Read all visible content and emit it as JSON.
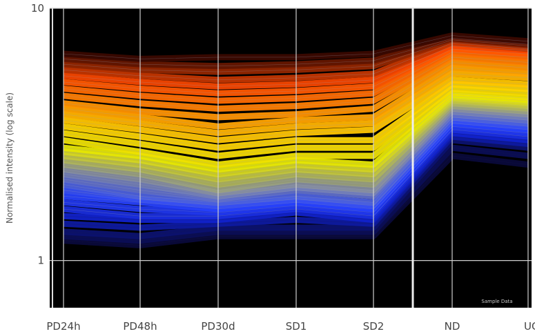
{
  "chart_data": {
    "type": "line",
    "title": "",
    "xlabel": "",
    "ylabel": "Normalised intensity (log scale)",
    "y_scale": "log",
    "ylim": [
      0.65,
      10
    ],
    "y_ticks": [
      {
        "value": 10,
        "label": "10"
      },
      {
        "value": 1,
        "label": "1"
      }
    ],
    "categories": [
      "PD24h",
      "PD48h",
      "PD30d",
      "SD1",
      "SD2",
      "ND",
      "UG"
    ],
    "background": "#000000",
    "grid": true,
    "grid_color": "#cfcfcf",
    "divider_after_index": 4,
    "watermark": "Sample Data",
    "color_ramp": [
      "#0a0a3a",
      "#1020c8",
      "#2a45ff",
      "#8088a8",
      "#e8e800",
      "#ffd000",
      "#ff8a00",
      "#ff4a00",
      "#3a0800"
    ],
    "series": [
      {
        "values": [
          6.6,
          6.3,
          6.4,
          6.4,
          6.6,
          7.8,
          7.4
        ]
      },
      {
        "values": [
          6.3,
          6.0,
          5.9,
          6.0,
          6.2,
          7.6,
          7.2
        ]
      },
      {
        "values": [
          6.0,
          5.7,
          5.6,
          5.7,
          5.9,
          7.5,
          7.1
        ]
      },
      {
        "values": [
          5.7,
          5.4,
          5.2,
          5.3,
          5.5,
          7.3,
          6.9
        ]
      },
      {
        "values": [
          5.4,
          5.1,
          4.9,
          5.0,
          5.2,
          7.1,
          6.8
        ]
      },
      {
        "values": [
          5.1,
          4.8,
          4.6,
          4.7,
          4.9,
          6.9,
          6.6
        ]
      },
      {
        "values": [
          4.8,
          4.5,
          4.3,
          4.4,
          4.6,
          6.7,
          6.4
        ]
      },
      {
        "values": [
          4.5,
          4.2,
          4.0,
          4.1,
          4.3,
          6.4,
          6.1
        ]
      },
      {
        "values": [
          4.2,
          3.9,
          3.7,
          3.8,
          4.0,
          6.1,
          5.8
        ]
      },
      {
        "values": [
          4.0,
          3.7,
          3.4,
          3.6,
          3.7,
          5.8,
          5.5
        ]
      },
      {
        "values": [
          3.8,
          3.5,
          3.2,
          3.4,
          3.5,
          5.5,
          5.3
        ]
      },
      {
        "values": [
          3.6,
          3.3,
          3.0,
          3.2,
          3.3,
          5.2,
          5.0
        ]
      },
      {
        "values": [
          3.4,
          3.1,
          2.8,
          3.0,
          3.0,
          5.0,
          4.8
        ]
      },
      {
        "values": [
          3.2,
          2.9,
          2.6,
          2.8,
          2.8,
          4.8,
          4.6
        ]
      },
      {
        "values": [
          3.0,
          2.7,
          2.4,
          2.6,
          2.6,
          4.6,
          4.4
        ]
      },
      {
        "values": [
          2.8,
          2.6,
          2.3,
          2.5,
          2.4,
          4.5,
          4.3
        ]
      },
      {
        "values": [
          2.7,
          2.5,
          2.2,
          2.4,
          2.3,
          4.4,
          4.2
        ]
      },
      {
        "values": [
          2.6,
          2.4,
          2.1,
          2.3,
          2.2,
          4.3,
          4.1
        ]
      },
      {
        "values": [
          2.5,
          2.3,
          2.0,
          2.2,
          2.1,
          4.2,
          4.0
        ]
      },
      {
        "values": [
          2.4,
          2.2,
          1.9,
          2.1,
          2.0,
          4.1,
          3.9
        ]
      },
      {
        "values": [
          2.3,
          2.1,
          1.85,
          2.0,
          1.9,
          4.0,
          3.8
        ]
      },
      {
        "values": [
          2.2,
          2.0,
          1.8,
          1.95,
          1.85,
          3.9,
          3.7
        ]
      },
      {
        "values": [
          2.1,
          1.9,
          1.75,
          1.9,
          1.8,
          3.8,
          3.6
        ]
      },
      {
        "values": [
          2.0,
          1.8,
          1.7,
          1.8,
          1.7,
          3.7,
          3.5
        ]
      },
      {
        "values": [
          1.9,
          1.75,
          1.65,
          1.75,
          1.65,
          3.6,
          3.4
        ]
      },
      {
        "values": [
          1.8,
          1.7,
          1.6,
          1.7,
          1.6,
          3.5,
          3.3
        ]
      },
      {
        "values": [
          1.7,
          1.6,
          1.55,
          1.65,
          1.55,
          3.4,
          3.2
        ]
      },
      {
        "values": [
          1.6,
          1.5,
          1.5,
          1.6,
          1.5,
          3.3,
          3.1
        ]
      },
      {
        "values": [
          1.5,
          1.45,
          1.45,
          1.55,
          1.45,
          3.2,
          3.0
        ]
      },
      {
        "values": [
          1.4,
          1.35,
          1.4,
          1.45,
          1.4,
          3.1,
          2.9
        ]
      },
      {
        "values": [
          1.3,
          1.25,
          1.35,
          1.35,
          1.35,
          3.0,
          2.8
        ]
      },
      {
        "values": [
          1.25,
          1.2,
          1.3,
          1.3,
          1.3,
          2.8,
          2.6
        ]
      },
      {
        "values": [
          1.2,
          1.15,
          1.25,
          1.25,
          1.25,
          2.6,
          2.4
        ]
      }
    ]
  }
}
